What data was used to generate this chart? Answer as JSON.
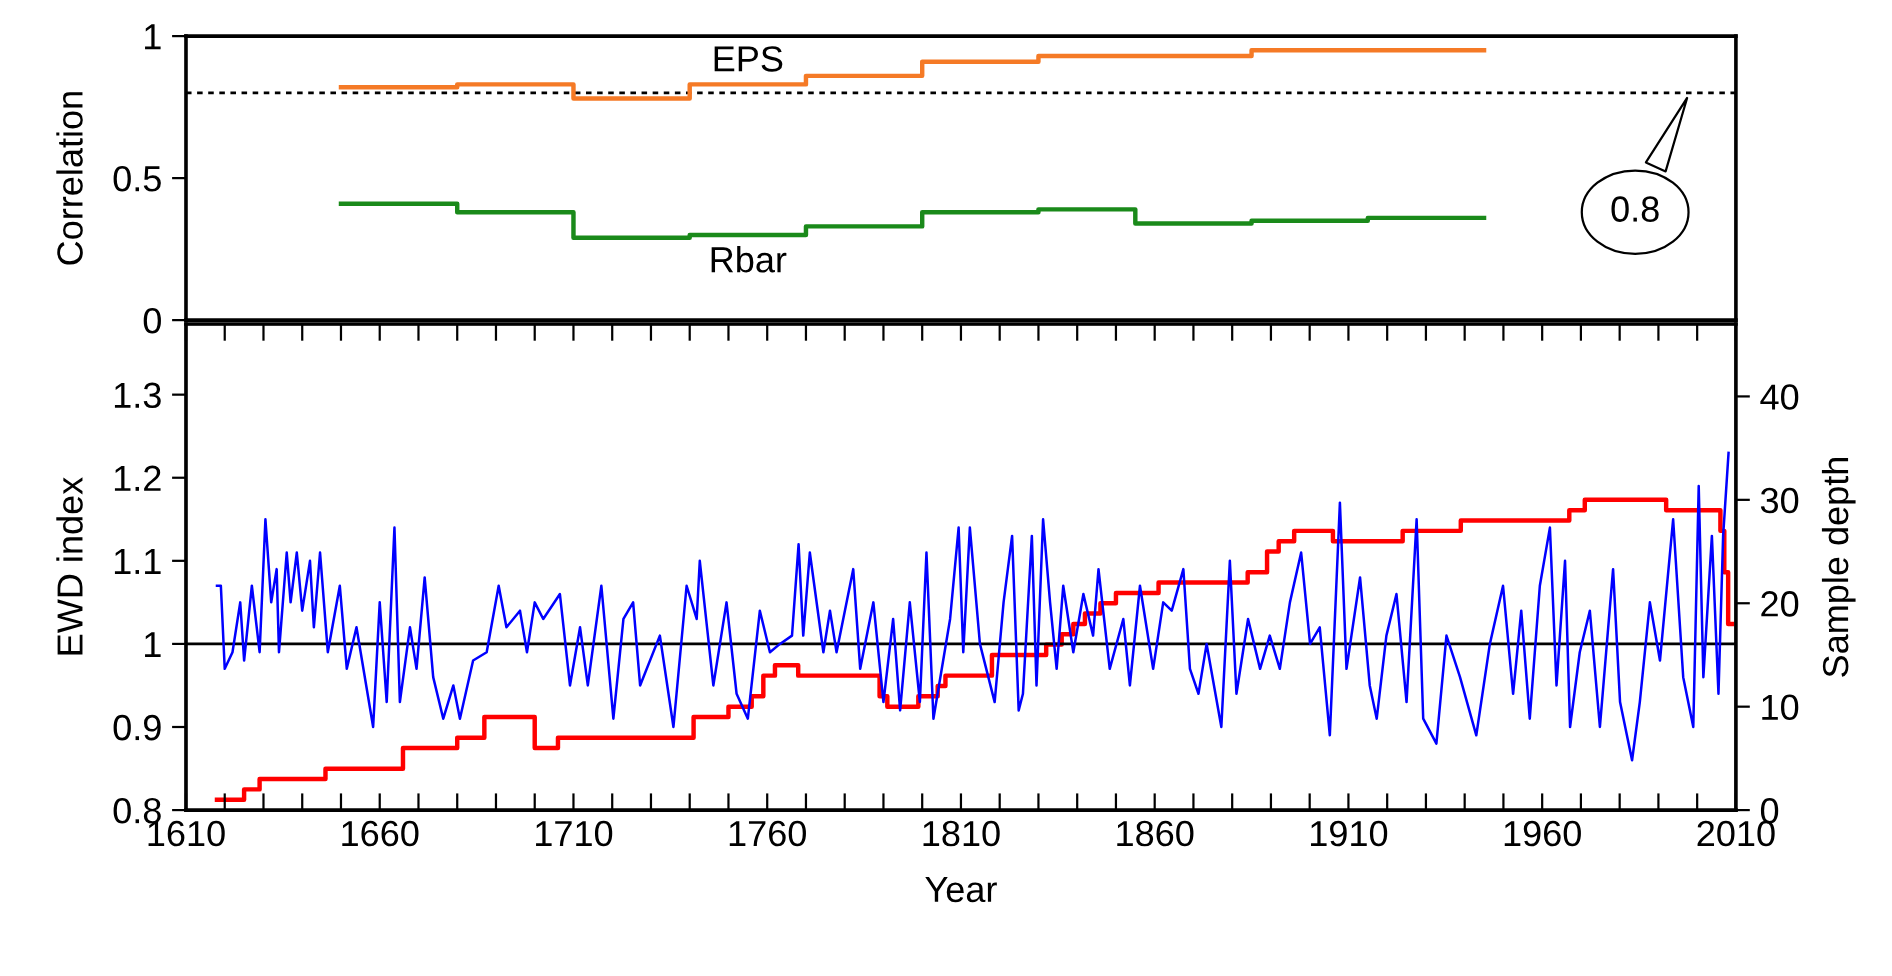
{
  "chart_data": [
    {
      "type": "step",
      "ylabel": "Correlation",
      "xlim": [
        1610,
        2010
      ],
      "ylim": [
        0,
        1
      ],
      "yticks": [
        0,
        0.5,
        1
      ],
      "tick_labels": "y",
      "ref_lines": [
        {
          "axis": "y",
          "value": 0.8,
          "label": "0.8",
          "color": "#000000",
          "line_style": "dotted"
        }
      ],
      "series": [
        {
          "name": "EPS",
          "color": "#f57a26",
          "x": [
            1650,
            1680,
            1710,
            1740,
            1770,
            1800,
            1830,
            1855,
            1885,
            1915,
            1945
          ],
          "values": [
            0.82,
            0.83,
            0.78,
            0.83,
            0.86,
            0.91,
            0.93,
            0.93,
            0.95,
            0.95,
            0.95
          ]
        },
        {
          "name": "Rbar",
          "color": "#1a8a1a",
          "x": [
            1650,
            1680,
            1710,
            1740,
            1770,
            1800,
            1830,
            1855,
            1885,
            1915,
            1945
          ],
          "values": [
            0.41,
            0.38,
            0.29,
            0.3,
            0.33,
            0.38,
            0.39,
            0.34,
            0.35,
            0.36,
            0.36
          ]
        }
      ]
    },
    {
      "type": "line",
      "xlabel": "Year",
      "ylabel": "EWD index",
      "y2label": "Sample depth",
      "xlim": [
        1610,
        2010
      ],
      "xticks": [
        1610,
        {
          "value": 1620,
          "label": null
        },
        {
          "value": 1630,
          "label": null
        },
        {
          "value": 1640,
          "label": null
        },
        {
          "value": 1650,
          "label": null
        },
        1660,
        {
          "value": 1670,
          "label": null
        },
        {
          "value": 1680,
          "label": null
        },
        {
          "value": 1690,
          "label": null
        },
        {
          "value": 1700,
          "label": null
        },
        1710,
        {
          "value": 1720,
          "label": null
        },
        {
          "value": 1730,
          "label": null
        },
        {
          "value": 1740,
          "label": null
        },
        {
          "value": 1750,
          "label": null
        },
        1760,
        {
          "value": 1770,
          "label": null
        },
        {
          "value": 1780,
          "label": null
        },
        {
          "value": 1790,
          "label": null
        },
        {
          "value": 1800,
          "label": null
        },
        1810,
        {
          "value": 1820,
          "label": null
        },
        {
          "value": 1830,
          "label": null
        },
        {
          "value": 1840,
          "label": null
        },
        {
          "value": 1850,
          "label": null
        },
        1860,
        {
          "value": 1870,
          "label": null
        },
        {
          "value": 1880,
          "label": null
        },
        {
          "value": 1890,
          "label": null
        },
        {
          "value": 1900,
          "label": null
        },
        1910,
        {
          "value": 1920,
          "label": null
        },
        {
          "value": 1930,
          "label": null
        },
        {
          "value": 1940,
          "label": null
        },
        {
          "value": 1950,
          "label": null
        },
        1960,
        {
          "value": 1970,
          "label": null
        },
        {
          "value": 1980,
          "label": null
        },
        {
          "value": 1990,
          "label": null
        },
        {
          "value": 2000,
          "label": null
        },
        2010
      ],
      "ylim": [
        0.8,
        1.385
      ],
      "yticks": [
        0.8,
        0.9,
        1,
        1.1,
        1.2,
        1.3
      ],
      "y2lim": [
        0,
        47
      ],
      "y2ticks": [
        0,
        10,
        20,
        30,
        40
      ],
      "ref_lines": [
        {
          "axis": "y",
          "value": 1,
          "color": "#000000",
          "line_style": "solid"
        }
      ],
      "series": [
        {
          "type": "line",
          "color": "#0000ff",
          "x": [
            1618,
            1619,
            1620,
            1622,
            1624,
            1625,
            1627,
            1629,
            1630.5,
            1632,
            1633.4,
            1634,
            1636,
            1637,
            1638.6,
            1640,
            1642,
            1643,
            1644.6,
            1646.6,
            1649.7,
            1651.5,
            1654,
            1658.3,
            1660,
            1661.8,
            1663.8,
            1665.2,
            1667.8,
            1669.5,
            1671.6,
            1673.8,
            1676.4,
            1679,
            1680.7,
            1684.1,
            1687.6,
            1690.7,
            1692.7,
            1696.2,
            1698,
            1700,
            1702.2,
            1706.5,
            1709.1,
            1711.7,
            1713.7,
            1717.2,
            1720.3,
            1722.9,
            1725.4,
            1727.2,
            1732.3,
            1735.8,
            1739.2,
            1741.8,
            1742.6,
            1746.1,
            1749.5,
            1752.1,
            1755,
            1758.1,
            1760.7,
            1763.3,
            1766.4,
            1768.1,
            1769.3,
            1771,
            1774.5,
            1776.2,
            1777.9,
            1782.2,
            1784,
            1787.4,
            1790,
            1792.5,
            1794.3,
            1796.8,
            1799.4,
            1801.1,
            1802.9,
            1807.2,
            1809.4,
            1810.6,
            1812.3,
            1814.9,
            1818.7,
            1821,
            1823.2,
            1824.9,
            1826,
            1828.3,
            1829.5,
            1831.2,
            1833,
            1834.7,
            1836.4,
            1839,
            1841.6,
            1844.1,
            1845.5,
            1848.4,
            1851.9,
            1853.6,
            1856.2,
            1859.6,
            1862.2,
            1864.4,
            1867.4,
            1869.1,
            1871.3,
            1873.4,
            1877.2,
            1879.4,
            1881.1,
            1884.1,
            1887.2,
            1889.7,
            1892.3,
            1894.9,
            1897.8,
            1900.1,
            1902.6,
            1905.2,
            1907.8,
            1909.5,
            1913,
            1915.5,
            1917.3,
            1919.8,
            1922.4,
            1925,
            1927.6,
            1929.3,
            1932.7,
            1935.3,
            1938.8,
            1943,
            1946.5,
            1949.9,
            1952.5,
            1954.6,
            1956.8,
            1959.4,
            1962,
            1963.7,
            1965.9,
            1967.2,
            1969.7,
            1972.3,
            1974.9,
            1978.3,
            1980.1,
            1983.2,
            1985.2,
            1987.8,
            1990.4,
            1993.8,
            1996.4,
            1999,
            2000.4,
            2001.6,
            2003.8,
            2005.5,
            2006.7,
            2008.1
          ],
          "values": [
            1.07,
            1.07,
            0.97,
            0.99,
            1.05,
            0.98,
            1.07,
            0.99,
            1.15,
            1.05,
            1.09,
            0.99,
            1.11,
            1.05,
            1.11,
            1.04,
            1.1,
            1.02,
            1.11,
            0.99,
            1.07,
            0.97,
            1.02,
            0.9,
            1.05,
            0.93,
            1.14,
            0.93,
            1.02,
            0.97,
            1.08,
            0.96,
            0.91,
            0.95,
            0.91,
            0.98,
            0.99,
            1.07,
            1.02,
            1.04,
            0.99,
            1.05,
            1.03,
            1.06,
            0.95,
            1.02,
            0.95,
            1.07,
            0.91,
            1.03,
            1.05,
            0.95,
            1.01,
            0.9,
            1.07,
            1.03,
            1.1,
            0.95,
            1.05,
            0.94,
            0.91,
            1.04,
            0.99,
            1.0,
            1.01,
            1.12,
            1.01,
            1.11,
            0.99,
            1.04,
            0.99,
            1.09,
            0.97,
            1.05,
            0.93,
            1.03,
            0.92,
            1.05,
            0.93,
            1.11,
            0.91,
            1.03,
            1.14,
            0.99,
            1.14,
            1.0,
            0.93,
            1.05,
            1.13,
            0.92,
            0.94,
            1.13,
            0.95,
            1.15,
            1.05,
            0.97,
            1.07,
            0.99,
            1.06,
            1.01,
            1.09,
            0.97,
            1.03,
            0.95,
            1.07,
            0.97,
            1.05,
            1.04,
            1.09,
            0.97,
            0.94,
            1.0,
            0.9,
            1.1,
            0.94,
            1.03,
            0.97,
            1.01,
            0.97,
            1.05,
            1.11,
            1.0,
            1.02,
            0.89,
            1.17,
            0.97,
            1.08,
            0.95,
            0.91,
            1.01,
            1.06,
            0.93,
            1.15,
            0.91,
            0.88,
            1.01,
            0.96,
            0.89,
            1.0,
            1.07,
            0.94,
            1.04,
            0.91,
            1.07,
            1.14,
            0.95,
            1.1,
            0.9,
            0.99,
            1.04,
            0.9,
            1.09,
            0.93,
            0.86,
            0.93,
            1.05,
            0.98,
            1.15,
            0.96,
            0.9,
            1.19,
            0.96,
            1.13,
            0.94,
            1.13,
            1.23
          ]
        },
        {
          "type": "step",
          "axis": "y2",
          "color": "#ff0000",
          "x": [
            1618,
            1625,
            1629,
            1646,
            1666,
            1680,
            1687,
            1700,
            1706,
            1741,
            1750,
            1756,
            1759,
            1762,
            1768,
            1789,
            1791,
            1799,
            1804,
            1806,
            1818,
            1832,
            1836,
            1839,
            1842,
            1846,
            1850,
            1861,
            1884,
            1889,
            1892,
            1896,
            1906,
            1924,
            1939,
            1967,
            1971,
            1992,
            2006,
            2007,
            2008,
            2009
          ],
          "values": [
            1,
            2,
            3,
            4,
            6,
            7,
            9,
            6,
            7,
            9,
            10,
            11,
            13,
            14,
            13,
            11,
            10,
            11,
            12,
            13,
            15,
            16,
            17,
            18,
            19,
            20,
            21,
            22,
            23,
            25,
            26,
            27,
            26,
            27,
            28,
            29,
            30,
            29,
            27,
            23,
            18,
            18
          ]
        }
      ]
    }
  ]
}
